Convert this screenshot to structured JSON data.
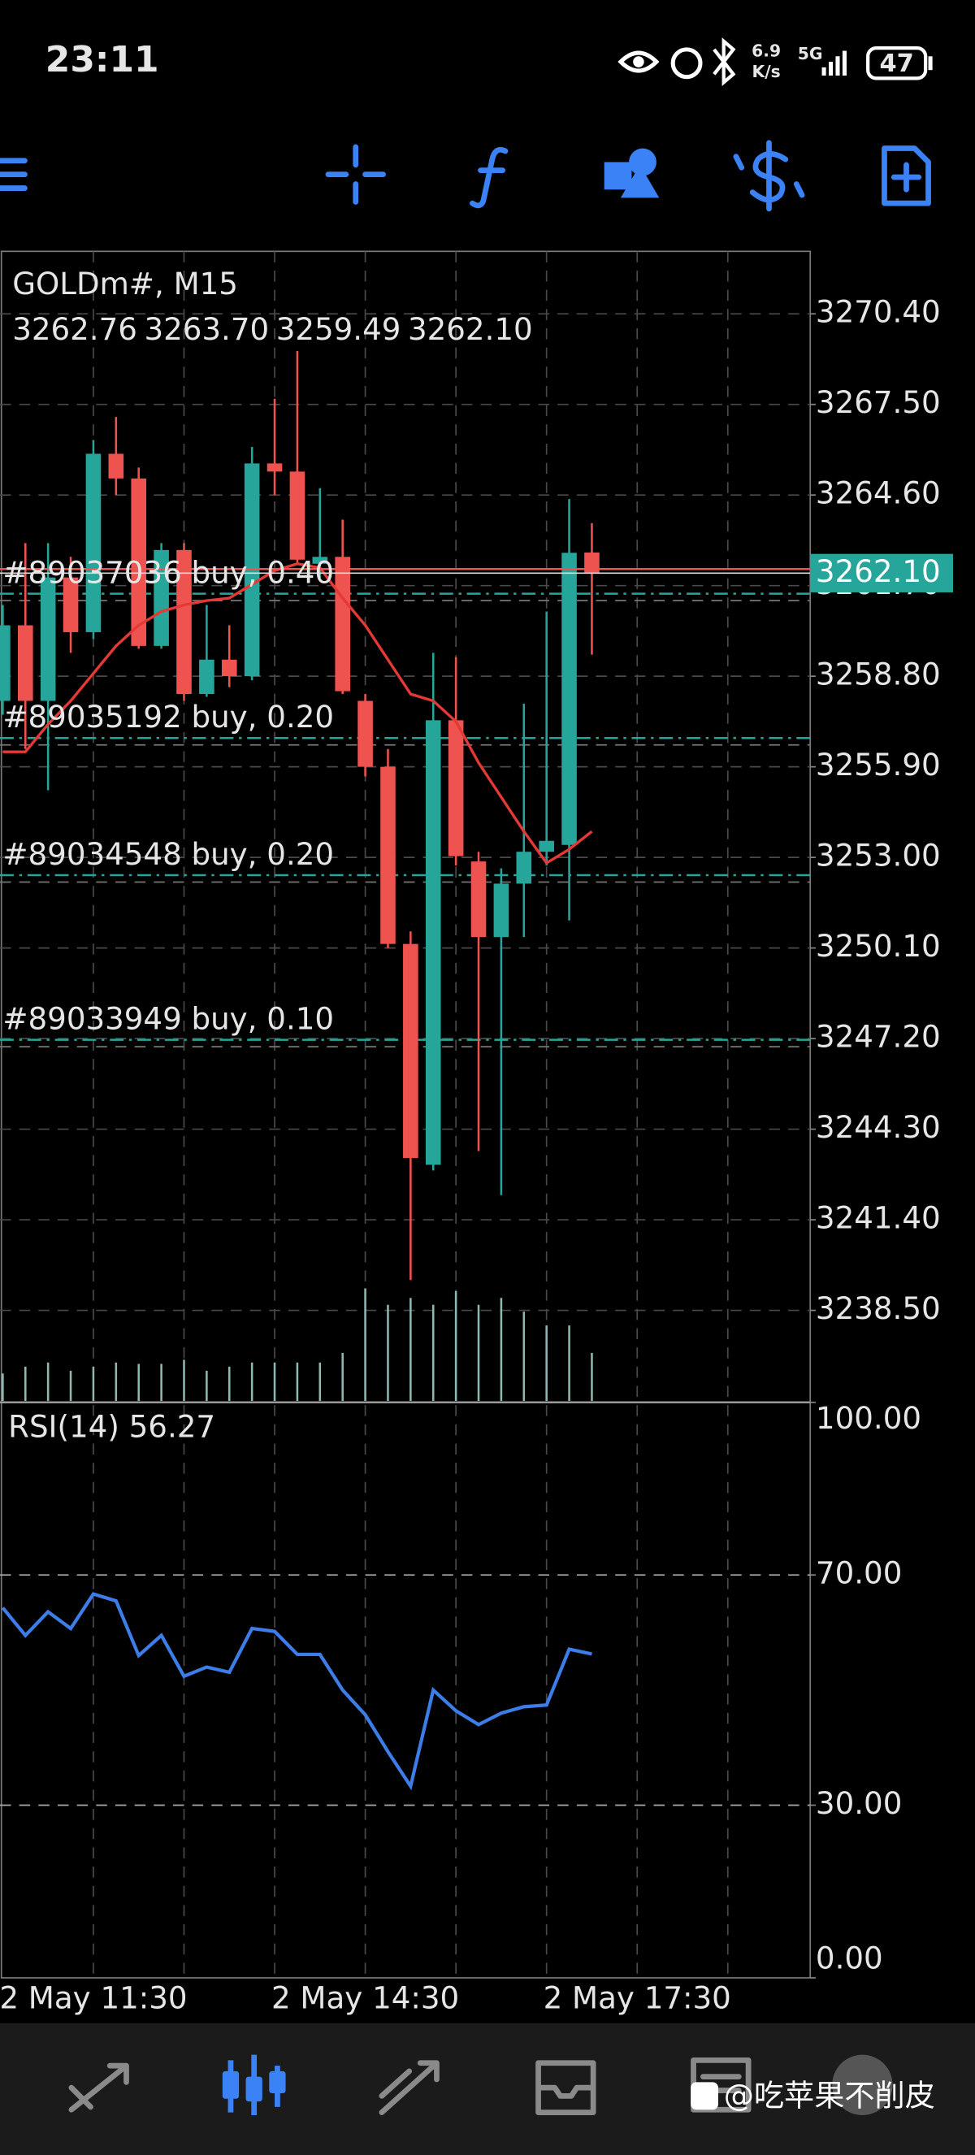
{
  "status_bar": {
    "time": "23:11",
    "net_speed": [
      "6.9",
      "K/s"
    ],
    "network": "5G",
    "battery": "47"
  },
  "chart_data": [
    {
      "type": "candlestick",
      "symbol": "GOLDm#, M15",
      "quote": [
        "3262.76",
        "3263.70",
        "3259.49",
        "3262.10"
      ],
      "open": [
        3258.01,
        3260.43,
        3258.01,
        3261.96,
        3260.21,
        3265.92,
        3265.13,
        3259.77,
        3262.84,
        3258.23,
        3259.33,
        3258.8,
        3265.61,
        3265.35,
        3262.4,
        3262.62,
        3258.01,
        3255.9,
        3250.23,
        3243.16,
        3257.39,
        3252.87,
        3250.45,
        3252.16,
        3253.18,
        3253.4,
        3262.76
      ],
      "high": [
        3261.08,
        3263.06,
        3263.06,
        3262.62,
        3266.36,
        3267.1,
        3265.48,
        3263.06,
        3263.06,
        3261.08,
        3260.43,
        3266.14,
        3267.68,
        3269.21,
        3264.82,
        3263.81,
        3258.23,
        3256.47,
        3250.63,
        3259.55,
        3259.41,
        3253.18,
        3252.65,
        3257.92,
        3260.87,
        3264.47,
        3263.7
      ],
      "low": [
        3257.57,
        3256.47,
        3255.15,
        3259.55,
        3259.99,
        3264.6,
        3259.68,
        3259.68,
        3258.01,
        3258.14,
        3258.45,
        3258.67,
        3264.6,
        3262.4,
        3261.96,
        3258.23,
        3255.59,
        3250.1,
        3239.47,
        3242.98,
        3252.74,
        3243.6,
        3242.19,
        3250.45,
        3252.74,
        3250.98,
        3259.49
      ],
      "close": [
        3260.43,
        3258.01,
        3261.96,
        3260.21,
        3265.92,
        3265.13,
        3259.77,
        3262.84,
        3258.23,
        3259.33,
        3258.8,
        3265.61,
        3265.35,
        3262.53,
        3262.62,
        3258.32,
        3255.9,
        3250.23,
        3243.38,
        3257.39,
        3253.04,
        3250.45,
        3252.16,
        3253.18,
        3253.53,
        3262.75,
        3262.1
      ],
      "colors": {
        "up": "#26a69a",
        "down": "#ef5350"
      },
      "ma": {
        "color": "#e53935",
        "values": [
          3256.38,
          3256.38,
          3257.26,
          3258.01,
          3258.89,
          3259.77,
          3260.43,
          3260.87,
          3261.08,
          3261.22,
          3261.3,
          3261.74,
          3262.18,
          3262.4,
          3262.27,
          3261.3,
          3260.43,
          3259.33,
          3258.23,
          3258.01,
          3257.35,
          3256.03,
          3254.93,
          3253.83,
          3252.82,
          3253.26,
          3253.83
        ]
      },
      "volumes": [
        20,
        25,
        28,
        22,
        25,
        28,
        27,
        27,
        30,
        22,
        25,
        28,
        28,
        28,
        28,
        35,
        82,
        70,
        75,
        70,
        80,
        70,
        75,
        65,
        55,
        55,
        35
      ],
      "ylim": [
        3235.6,
        3272.4
      ],
      "yticks": [
        {
          "value": 3270.4,
          "label": "3270.40"
        },
        {
          "value": 3267.5,
          "label": "3267.50"
        },
        {
          "value": 3264.6,
          "label": "3264.60"
        },
        {
          "value": 3261.7,
          "label": "3261.70"
        },
        {
          "value": 3258.8,
          "label": "3258.80"
        },
        {
          "value": 3255.9,
          "label": "3255.90"
        },
        {
          "value": 3253,
          "label": "3253.00"
        },
        {
          "value": 3250.1,
          "label": "3250.10"
        },
        {
          "value": 3247.2,
          "label": "3247.20"
        },
        {
          "value": 3244.3,
          "label": "3244.30"
        },
        {
          "value": 3241.4,
          "label": "3241.40"
        },
        {
          "value": 3238.5,
          "label": "3238.50"
        }
      ],
      "xticks": [
        {
          "value": 4,
          "label": "2 May 11:30"
        },
        {
          "value": 16,
          "label": "2 May 14:30"
        },
        {
          "value": 28,
          "label": "2 May 17:30"
        }
      ],
      "orders": [
        {
          "label": "#89037036 buy, 0.40",
          "price": 3261.44
        },
        {
          "label": "#89035192 buy, 0.20",
          "price": 3256.82
        },
        {
          "label": "#89034548 buy, 0.20",
          "price": 3252.43
        },
        {
          "label": "#89033949 buy, 0.10",
          "price": 3247.16
        }
      ],
      "grid": true
    },
    {
      "type": "line",
      "label": "RSI(14) 56.27",
      "color": "#3d7de8",
      "values": [
        64.3,
        59.5,
        63.6,
        60.7,
        66.7,
        65.5,
        56.0,
        59.5,
        52.4,
        54.0,
        53.1,
        60.7,
        60.2,
        56.2,
        56.2,
        50.0,
        45.7,
        39.3,
        33.3,
        50.0,
        46.4,
        44.0,
        46.0,
        47.1,
        47.4,
        57.1,
        56.27
      ],
      "ylim": [
        0,
        100
      ],
      "yticks": [
        {
          "value": 100,
          "label": "100.00"
        },
        {
          "value": 70,
          "label": "70.00"
        },
        {
          "value": 30,
          "label": "30.00"
        },
        {
          "value": 0,
          "label": "0.00"
        }
      ]
    }
  ],
  "watermark": "@吃苹果不削皮"
}
